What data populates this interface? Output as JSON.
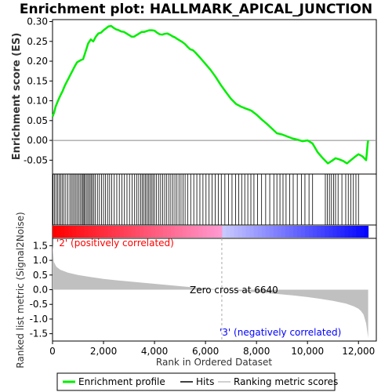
{
  "chart_data": {
    "type": "line",
    "title": "Enrichment plot: HALLMARK_APICAL_JUNCTION",
    "es_panel": {
      "ylabel": "Enrichment score (ES)",
      "ylim": [
        -0.085,
        0.305
      ],
      "yticks": [
        0.3,
        0.25,
        0.2,
        0.15,
        0.1,
        0.05,
        0.0,
        -0.05
      ],
      "ytick_labels": [
        "0.30",
        "0.25",
        "0.20",
        "0.15",
        "0.10",
        "0.05",
        "0.00",
        "-0.05"
      ],
      "series": [
        {
          "name": "Enrichment profile",
          "color": "#00ee00",
          "x": [
            0,
            60,
            120,
            180,
            250,
            320,
            400,
            480,
            560,
            640,
            720,
            800,
            880,
            960,
            1040,
            1120,
            1200,
            1300,
            1400,
            1500,
            1600,
            1700,
            1800,
            1900,
            2000,
            2100,
            2200,
            2300,
            2400,
            2500,
            2600,
            2700,
            2800,
            2900,
            3000,
            3100,
            3200,
            3300,
            3400,
            3500,
            3600,
            3700,
            3800,
            3900,
            4000,
            4100,
            4200,
            4300,
            4400,
            4500,
            4600,
            4700,
            4800,
            4900,
            5000,
            5100,
            5200,
            5300,
            5400,
            5500,
            5600,
            5800,
            6000,
            6200,
            6400,
            6600,
            6800,
            7000,
            7200,
            7400,
            7600,
            7800,
            8000,
            8200,
            8400,
            8600,
            8800,
            9000,
            9200,
            9400,
            9600,
            9800,
            10000,
            10200,
            10400,
            10600,
            10800,
            10950,
            11100,
            11250,
            11400,
            11550,
            11700,
            11850,
            12000,
            12150,
            12300,
            12330,
            12360,
            12380
          ],
          "y": [
            0.06,
            0.07,
            0.085,
            0.095,
            0.105,
            0.115,
            0.125,
            0.138,
            0.148,
            0.158,
            0.168,
            0.178,
            0.188,
            0.197,
            0.2,
            0.203,
            0.205,
            0.225,
            0.245,
            0.255,
            0.25,
            0.262,
            0.27,
            0.272,
            0.278,
            0.283,
            0.288,
            0.289,
            0.284,
            0.28,
            0.278,
            0.275,
            0.274,
            0.27,
            0.266,
            0.262,
            0.262,
            0.266,
            0.27,
            0.274,
            0.274,
            0.276,
            0.278,
            0.278,
            0.277,
            0.272,
            0.268,
            0.267,
            0.269,
            0.27,
            0.267,
            0.263,
            0.26,
            0.256,
            0.252,
            0.248,
            0.243,
            0.236,
            0.23,
            0.228,
            0.222,
            0.208,
            0.193,
            0.178,
            0.16,
            0.14,
            0.122,
            0.105,
            0.092,
            0.085,
            0.08,
            0.075,
            0.065,
            0.053,
            0.042,
            0.03,
            0.018,
            0.015,
            0.01,
            0.005,
            0.002,
            -0.002,
            0.0,
            -0.008,
            -0.03,
            -0.045,
            -0.058,
            -0.052,
            -0.045,
            -0.048,
            -0.052,
            -0.058,
            -0.05,
            -0.042,
            -0.035,
            -0.04,
            -0.05,
            -0.03,
            -0.01,
            0.0
          ]
        }
      ]
    },
    "hits_panel": {
      "hit_positions": [
        20,
        80,
        140,
        200,
        260,
        320,
        380,
        450,
        520,
        600,
        680,
        740,
        800,
        860,
        920,
        980,
        1040,
        1100,
        1160,
        1200,
        1240,
        1290,
        1350,
        1400,
        1460,
        1510,
        1560,
        1620,
        1680,
        1760,
        1840,
        1920,
        2000,
        2080,
        2160,
        2240,
        2320,
        2420,
        2520,
        2620,
        2720,
        2820,
        2920,
        3020,
        3120,
        3220,
        3300,
        3380,
        3460,
        3520,
        3580,
        3640,
        3700,
        3760,
        3820,
        3880,
        3940,
        4000,
        4080,
        4160,
        4240,
        4320,
        4400,
        4480,
        4560,
        4640,
        4720,
        4800,
        4880,
        4960,
        5040,
        5120,
        5200,
        5300,
        5420,
        5540,
        5660,
        5780,
        5900,
        6020,
        6140,
        6260,
        6380,
        6500,
        6620,
        6760,
        6900,
        7040,
        7180,
        7300,
        7420,
        7540,
        7660,
        7780,
        7900,
        8040,
        8200,
        8360,
        8520,
        8680,
        8800,
        8920,
        9040,
        9160,
        9300,
        9440,
        9600,
        9760,
        9900,
        10060,
        10200,
        10700,
        10780,
        10860,
        10940,
        11020,
        11100,
        11200,
        11350,
        11500,
        11600,
        11700,
        11800,
        11900,
        12000
      ]
    },
    "ranking_bar": {
      "colors": [
        "#ff0000",
        "#ff9cd4",
        "#c8c8ff",
        "#0000ff"
      ],
      "labels": [
        "'2' (positively correlated)",
        "'3' (negatively correlated)"
      ],
      "label_colors": [
        "#ff0000",
        "#0000ff"
      ]
    },
    "metric_panel": {
      "ylabel": "Ranked list metric (Signal2Noise)",
      "ylim": [
        -1.75,
        1.75
      ],
      "yticks": [
        1.5,
        1.0,
        0.5,
        0.0,
        -0.5,
        -1.0,
        -1.5
      ],
      "ytick_labels": [
        "1.5",
        "1.0",
        "0.5",
        "0.0",
        "-0.5",
        "-1.0",
        "-1.5"
      ],
      "zero_cross_label": "Zero cross at 6640",
      "zero_cross": 6640,
      "x": [
        0,
        50,
        150,
        300,
        600,
        1000,
        1500,
        2000,
        2500,
        3000,
        3500,
        4000,
        4500,
        5000,
        5500,
        6000,
        6640,
        7000,
        7500,
        8000,
        8500,
        9000,
        9500,
        10000,
        10500,
        11000,
        11500,
        11800,
        12000,
        12100,
        12200,
        12300,
        12380
      ],
      "y": [
        1.55,
        0.95,
        0.78,
        0.68,
        0.58,
        0.5,
        0.43,
        0.37,
        0.32,
        0.28,
        0.24,
        0.2,
        0.16,
        0.12,
        0.08,
        0.04,
        0.0,
        -0.03,
        -0.06,
        -0.09,
        -0.12,
        -0.16,
        -0.2,
        -0.25,
        -0.31,
        -0.38,
        -0.47,
        -0.56,
        -0.65,
        -0.73,
        -0.85,
        -1.15,
        -1.65
      ]
    },
    "xaxis": {
      "label": "Rank in Ordered Dataset",
      "xlim": [
        0,
        12700
      ],
      "ticks": [
        0,
        2000,
        4000,
        6000,
        8000,
        10000,
        12000
      ],
      "tick_labels": [
        "0",
        "2,000",
        "4,000",
        "6,000",
        "8,000",
        "10,000",
        "12,000"
      ]
    },
    "legend": {
      "placement": "bottom",
      "items": [
        {
          "label": "Enrichment profile",
          "color": "#00ee00"
        },
        {
          "label": "Hits",
          "color": "#000000"
        },
        {
          "label": "Ranking metric scores",
          "color": "#c0c0c0"
        }
      ]
    }
  }
}
